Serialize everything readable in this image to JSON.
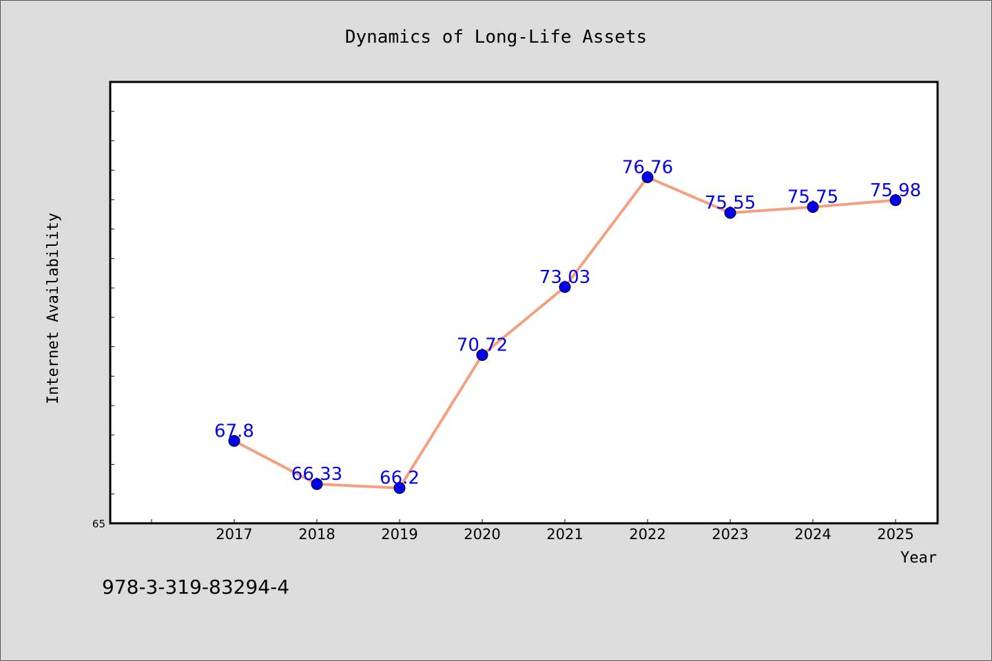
{
  "chart_data": {
    "type": "line",
    "title": "Dynamics of Long-Life Assets",
    "xlabel": "Year",
    "ylabel": "Internet Availability",
    "categories": [
      "2017",
      "2018",
      "2019",
      "2020",
      "2021",
      "2022",
      "2023",
      "2024",
      "2025"
    ],
    "series": [
      {
        "values": [
          67.8,
          66.33,
          66.2,
          70.72,
          73.03,
          76.76,
          75.55,
          75.75,
          75.98
        ],
        "labels": [
          "67.8",
          "66.33",
          "66.2",
          "70.72",
          "73.03",
          "76.76",
          "75.55",
          "75.75",
          "75.98"
        ],
        "line_color": "#f4a07e",
        "marker_color": "#0000ee"
      }
    ],
    "ylim": [
      65,
      80
    ],
    "yticks_labeled": [
      "65"
    ],
    "grid": false,
    "legend": "none"
  },
  "footer": {
    "isbn": "978-3-319-83294-4"
  },
  "colors": {
    "background": "#dcdcdc",
    "plot_background": "#ffffff",
    "data_label": "#0000ee"
  }
}
